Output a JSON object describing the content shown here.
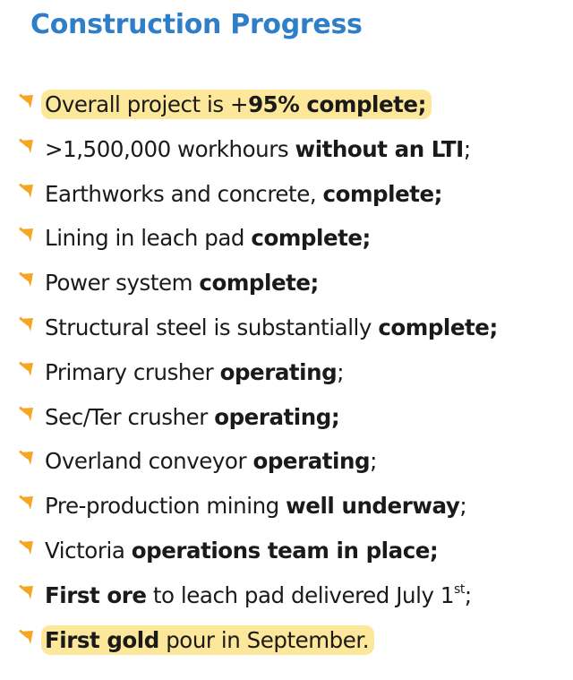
{
  "title": "Construction Progress",
  "bullet_icon": "orange-arrow-bullet-icon",
  "colors": {
    "title": "#2f7fc8",
    "bullet": "#f5a623",
    "highlight": "#fde79a",
    "text": "#1a1a1a"
  },
  "items": [
    {
      "parts": [
        {
          "text": "Overall project is +"
        },
        {
          "text": "95% complete;",
          "bold": true
        }
      ],
      "highlight": true
    },
    {
      "parts": [
        {
          "text": ">1,500,000 workhours "
        },
        {
          "text": "without an LTI",
          "bold": true
        },
        {
          "text": ";"
        }
      ]
    },
    {
      "parts": [
        {
          "text": "Earthworks and concrete, "
        },
        {
          "text": "complete;",
          "bold": true
        }
      ]
    },
    {
      "parts": [
        {
          "text": "Lining in leach pad "
        },
        {
          "text": "complete;",
          "bold": true
        }
      ]
    },
    {
      "parts": [
        {
          "text": "Power system "
        },
        {
          "text": "complete;",
          "bold": true
        }
      ]
    },
    {
      "parts": [
        {
          "text": "Structural steel is substantially "
        },
        {
          "text": "complete;",
          "bold": true
        }
      ]
    },
    {
      "parts": [
        {
          "text": "Primary crusher "
        },
        {
          "text": "operating",
          "bold": true
        },
        {
          "text": ";"
        }
      ]
    },
    {
      "parts": [
        {
          "text": "Sec/Ter crusher "
        },
        {
          "text": "operating;",
          "bold": true
        }
      ]
    },
    {
      "parts": [
        {
          "text": "Overland conveyor "
        },
        {
          "text": "operating",
          "bold": true
        },
        {
          "text": ";"
        }
      ]
    },
    {
      "parts": [
        {
          "text": "Pre-production mining "
        },
        {
          "text": "well underway",
          "bold": true
        },
        {
          "text": ";"
        }
      ]
    },
    {
      "parts": [
        {
          "text": "Victoria "
        },
        {
          "text": "operations team in place;",
          "bold": true
        }
      ]
    },
    {
      "parts": [
        {
          "text": "First ore",
          "bold": true
        },
        {
          "text": " to leach pad delivered July 1"
        },
        {
          "text": "st",
          "sup": true
        },
        {
          "text": ";"
        }
      ]
    },
    {
      "parts": [
        {
          "text": "First gold",
          "bold": true
        },
        {
          "text": " pour in September."
        }
      ],
      "highlight": true
    }
  ]
}
